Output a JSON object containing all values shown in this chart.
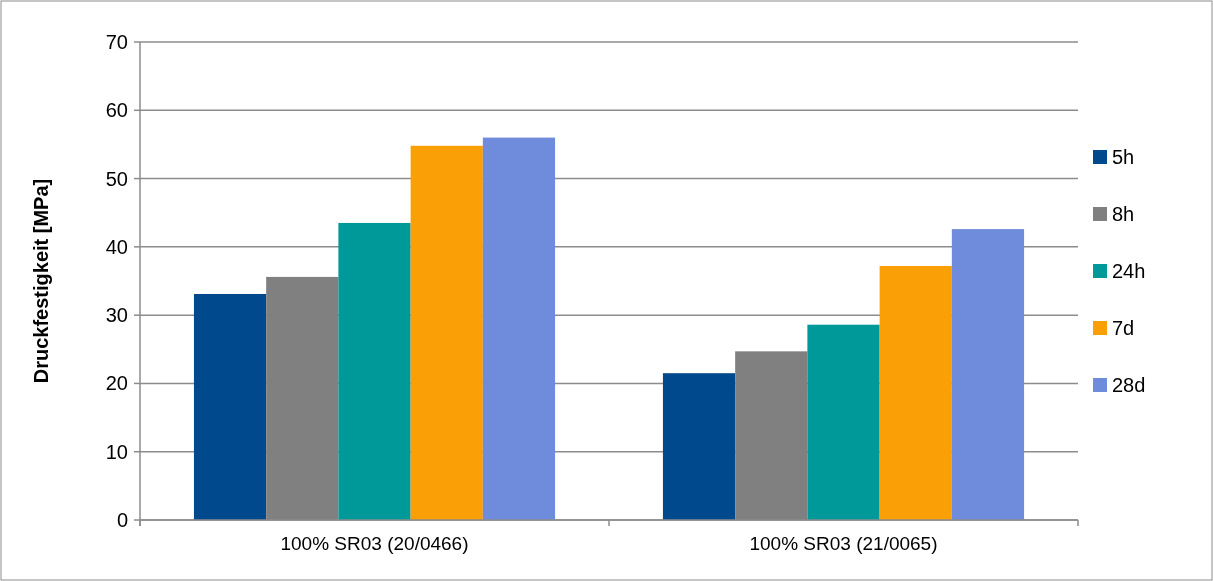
{
  "chart_data": {
    "type": "bar",
    "ylabel": "Druckfestigkeit [MPa]",
    "categories": [
      "100% SR03 (20/0466)",
      "100% SR03 (21/0065)"
    ],
    "series": [
      {
        "name": "5h",
        "color": "#00498c",
        "values": [
          33.1,
          21.5
        ]
      },
      {
        "name": "8h",
        "color": "#808080",
        "values": [
          35.6,
          24.7
        ]
      },
      {
        "name": "24h",
        "color": "#009999",
        "values": [
          43.5,
          28.6
        ]
      },
      {
        "name": "7d",
        "color": "#fa9f06",
        "values": [
          54.8,
          37.2
        ]
      },
      {
        "name": "28d",
        "color": "#6f8bdb",
        "values": [
          56.0,
          42.6
        ]
      }
    ],
    "ylim": [
      0,
      70
    ],
    "yticks": [
      0,
      10,
      20,
      30,
      40,
      50,
      60,
      70
    ],
    "grid": "y",
    "legend": "right"
  }
}
